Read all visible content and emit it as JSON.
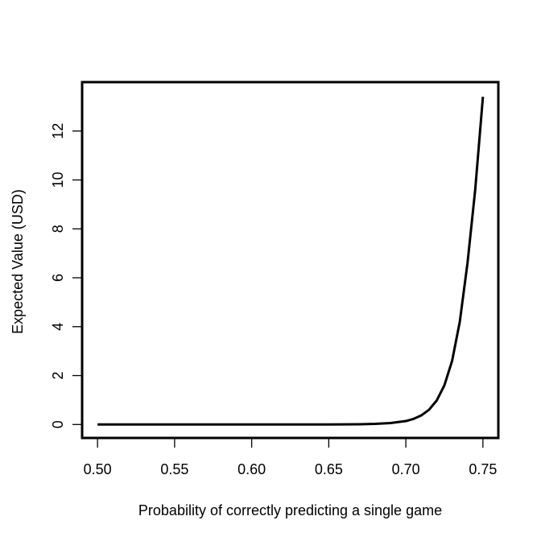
{
  "chart_data": {
    "type": "line",
    "title": "",
    "xlabel": "Probability of correctly predicting a single game",
    "ylabel": "Expected Value (USD)",
    "xlim": [
      0.49,
      0.76
    ],
    "ylim": [
      -0.55,
      14.0
    ],
    "grid": false,
    "legend": "none",
    "x_ticks": [
      0.5,
      0.55,
      0.6,
      0.65,
      0.7,
      0.75
    ],
    "x_tick_labels": [
      "0.50",
      "0.55",
      "0.60",
      "0.65",
      "0.70",
      "0.75"
    ],
    "y_ticks": [
      0,
      2,
      4,
      6,
      8,
      10,
      12
    ],
    "y_tick_labels": [
      "0",
      "2",
      "4",
      "6",
      "8",
      "10",
      "12"
    ],
    "series": [
      {
        "color": "#000000",
        "x": [
          0.5,
          0.55,
          0.6,
          0.65,
          0.66,
          0.67,
          0.68,
          0.69,
          0.7,
          0.705,
          0.71,
          0.715,
          0.72,
          0.725,
          0.73,
          0.735,
          0.74,
          0.745,
          0.75
        ],
        "y": [
          0.0,
          0.0,
          0.0,
          0.0,
          0.005,
          0.01,
          0.025,
          0.06,
          0.14,
          0.23,
          0.37,
          0.6,
          0.98,
          1.6,
          2.6,
          4.2,
          6.6,
          9.6,
          13.4
        ]
      }
    ]
  }
}
